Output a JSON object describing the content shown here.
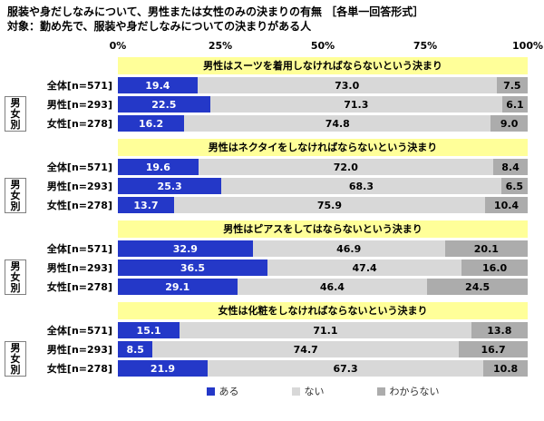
{
  "title": "服装や身だしなみについて、男性または女性のみの決まりの有無 ［各単一回答形式］",
  "subtitle": "対象：勤め先で、服装や身だしなみについての決まりがある人",
  "axis": {
    "ticks": [
      "0%",
      "25%",
      "50%",
      "75%",
      "100%"
    ]
  },
  "group_label": "男女別",
  "colors": {
    "header_bg": "#FFFF99",
    "bar_aru": "#2438C8",
    "bar_nai": "#D8D8D8",
    "bar_wakaranai": "#ACACAC"
  },
  "legend": [
    {
      "label": "ある",
      "color": "#2438C8",
      "text_color": "#FFFFFF"
    },
    {
      "label": "ない",
      "color": "#D8D8D8",
      "text_color": "#000000"
    },
    {
      "label": "わからない",
      "color": "#ACACAC",
      "text_color": "#000000"
    }
  ],
  "chart_data": {
    "type": "bar",
    "stacked": true,
    "orientation": "horizontal",
    "xlim": [
      0,
      100
    ],
    "series_names": [
      "ある",
      "ない",
      "わからない"
    ],
    "sections": [
      {
        "header": "男性はスーツを着用しなければならないという決まり",
        "rows": [
          {
            "label": "全体[n=571]",
            "values": [
              19.4,
              73.0,
              7.5
            ],
            "labels": [
              "19.4",
              "73.0",
              "7.5"
            ]
          },
          {
            "label": "男性[n=293]",
            "values": [
              22.5,
              71.3,
              6.1
            ],
            "labels": [
              "22.5",
              "71.3",
              "6.1"
            ]
          },
          {
            "label": "女性[n=278]",
            "values": [
              16.2,
              74.8,
              9.0
            ],
            "labels": [
              "16.2",
              "74.8",
              "9.0"
            ]
          }
        ]
      },
      {
        "header": "男性はネクタイをしなければならないという決まり",
        "rows": [
          {
            "label": "全体[n=571]",
            "values": [
              19.6,
              72.0,
              8.4
            ],
            "labels": [
              "19.6",
              "72.0",
              "8.4"
            ]
          },
          {
            "label": "男性[n=293]",
            "values": [
              25.3,
              68.3,
              6.5
            ],
            "labels": [
              "25.3",
              "68.3",
              "6.5"
            ]
          },
          {
            "label": "女性[n=278]",
            "values": [
              13.7,
              75.9,
              10.4
            ],
            "labels": [
              "13.7",
              "75.9",
              "10.4"
            ]
          }
        ]
      },
      {
        "header": "男性はピアスをしてはならないという決まり",
        "rows": [
          {
            "label": "全体[n=571]",
            "values": [
              32.9,
              46.9,
              20.1
            ],
            "labels": [
              "32.9",
              "46.9",
              "20.1"
            ]
          },
          {
            "label": "男性[n=293]",
            "values": [
              36.5,
              47.4,
              16.0
            ],
            "labels": [
              "36.5",
              "47.4",
              "16.0"
            ]
          },
          {
            "label": "女性[n=278]",
            "values": [
              29.1,
              46.4,
              24.5
            ],
            "labels": [
              "29.1",
              "46.4",
              "24.5"
            ]
          }
        ]
      },
      {
        "header": "女性は化粧をしなければならないという決まり",
        "rows": [
          {
            "label": "全体[n=571]",
            "values": [
              15.1,
              71.1,
              13.8
            ],
            "labels": [
              "15.1",
              "71.1",
              "13.8"
            ]
          },
          {
            "label": "男性[n=293]",
            "values": [
              8.5,
              74.7,
              16.7
            ],
            "labels": [
              "8.5",
              "74.7",
              "16.7"
            ]
          },
          {
            "label": "女性[n=278]",
            "values": [
              21.9,
              67.3,
              10.8
            ],
            "labels": [
              "21.9",
              "67.3",
              "10.8"
            ]
          }
        ]
      }
    ]
  }
}
